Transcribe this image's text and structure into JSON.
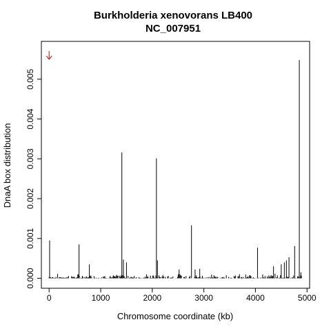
{
  "chart_data": {
    "type": "bar",
    "title": "Burkholderia xenovorans LB400",
    "subtitle": "NC_007951",
    "xlabel": "Chromosome coordinate (kb)",
    "ylabel": "DnaA box distribution",
    "xlim": [
      -150,
      5050
    ],
    "ylim": [
      -0.00025,
      0.00595
    ],
    "xticks": [
      0,
      1000,
      2000,
      3000,
      4000,
      5000
    ],
    "yticks": [
      0.0,
      0.001,
      0.002,
      0.003,
      0.004,
      0.005
    ],
    "ytick_labels": [
      "0.000",
      "0.001",
      "0.002",
      "0.003",
      "0.004",
      "0.005"
    ],
    "grid": false,
    "arrow_marker": {
      "x": 0,
      "color": "#cc0000"
    },
    "peaks": {
      "x": [
        10,
        580,
        780,
        1410,
        1440,
        1500,
        2080,
        2100,
        2520,
        2760,
        2830,
        2920,
        4040,
        4350,
        4500,
        4560,
        4600,
        4650,
        4760,
        4850,
        4880
      ],
      "y": [
        0.00095,
        0.00085,
        0.00035,
        0.00316,
        0.00047,
        0.0004,
        0.00301,
        0.00045,
        0.00022,
        0.00133,
        0.00022,
        0.00024,
        0.00077,
        0.0003,
        0.00035,
        0.0004,
        0.00045,
        0.00053,
        0.00081,
        0.00548,
        0.00015
      ]
    },
    "baseline": {
      "x_start": 0,
      "x_end": 4900,
      "step": 15,
      "max": 0.00012
    }
  }
}
